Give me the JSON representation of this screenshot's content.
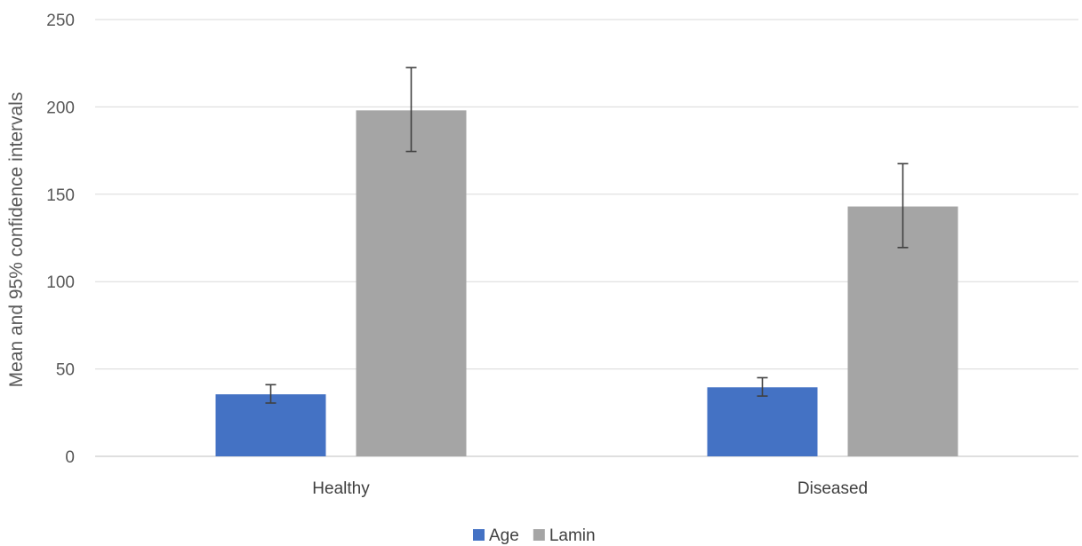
{
  "chart_data": {
    "type": "bar",
    "title": "",
    "xlabel": "",
    "ylabel": "Mean and 95% confidence intervals",
    "ylim": [
      0,
      250
    ],
    "yticks": [
      0,
      50,
      100,
      150,
      200,
      250
    ],
    "categories": [
      "Healthy",
      "Diseased"
    ],
    "series": [
      {
        "name": "Age",
        "color": "#4472C4",
        "values": [
          35.5,
          39.5
        ],
        "ci_low": [
          30.5,
          34.5
        ],
        "ci_high": [
          41,
          45
        ]
      },
      {
        "name": "Lamin",
        "color": "#A5A5A5",
        "values": [
          198,
          143
        ],
        "ci_low": [
          174.5,
          119.5
        ],
        "ci_high": [
          222.5,
          167.5
        ]
      }
    ],
    "grid": true,
    "legend": "bottom"
  }
}
